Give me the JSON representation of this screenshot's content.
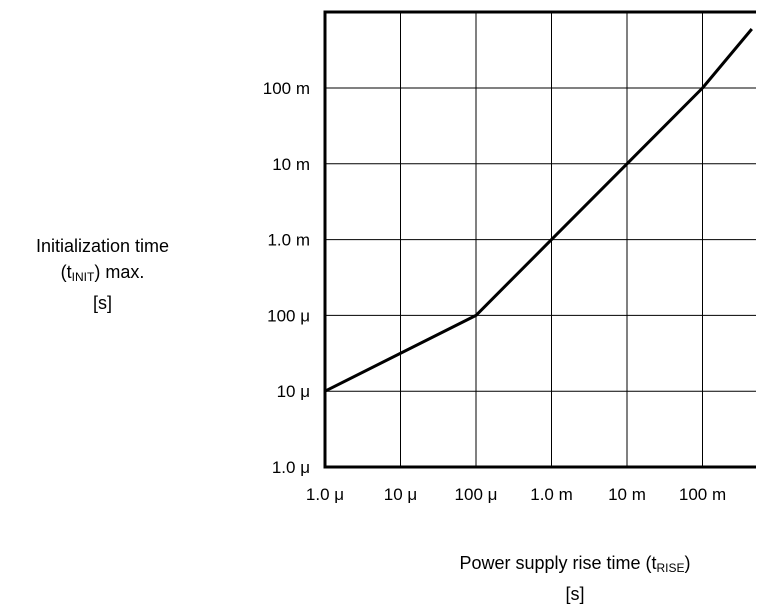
{
  "chart_data": {
    "type": "line",
    "title": "",
    "xscale": "log",
    "yscale": "log",
    "grid": true,
    "xlim": [
      1e-06,
      1
    ],
    "ylim": [
      1e-06,
      1
    ],
    "x_ticks": [
      {
        "value": 1e-06,
        "label": "1.0 μ"
      },
      {
        "value": 1e-05,
        "label": "10 μ"
      },
      {
        "value": 0.0001,
        "label": "100 μ"
      },
      {
        "value": 0.001,
        "label": "1.0 m"
      },
      {
        "value": 0.01,
        "label": "10 m"
      },
      {
        "value": 0.1,
        "label": "100 m"
      }
    ],
    "y_ticks": [
      {
        "value": 1e-06,
        "label": "1.0 μ"
      },
      {
        "value": 1e-05,
        "label": "10 μ"
      },
      {
        "value": 0.0001,
        "label": "100 μ"
      },
      {
        "value": 0.001,
        "label": "1.0 m"
      },
      {
        "value": 0.01,
        "label": "10 m"
      },
      {
        "value": 0.1,
        "label": "100 m"
      }
    ],
    "series": [
      {
        "x": [
          1e-06,
          0.0001,
          0.001,
          0.01,
          0.1,
          0.45
        ],
        "y": [
          1e-05,
          0.0001,
          0.001,
          0.01,
          0.1,
          0.6
        ],
        "color": "#000000"
      }
    ],
    "ylabel": {
      "line1": "Initialization time",
      "line2_pre": "(t",
      "line2_sub": "INIT",
      "line2_post": ") max.",
      "line3": "[s]"
    },
    "xlabel": {
      "line1_pre": "Power supply rise time (t",
      "line1_sub": "RISE",
      "line1_post": ")",
      "line2": "[s]"
    }
  }
}
